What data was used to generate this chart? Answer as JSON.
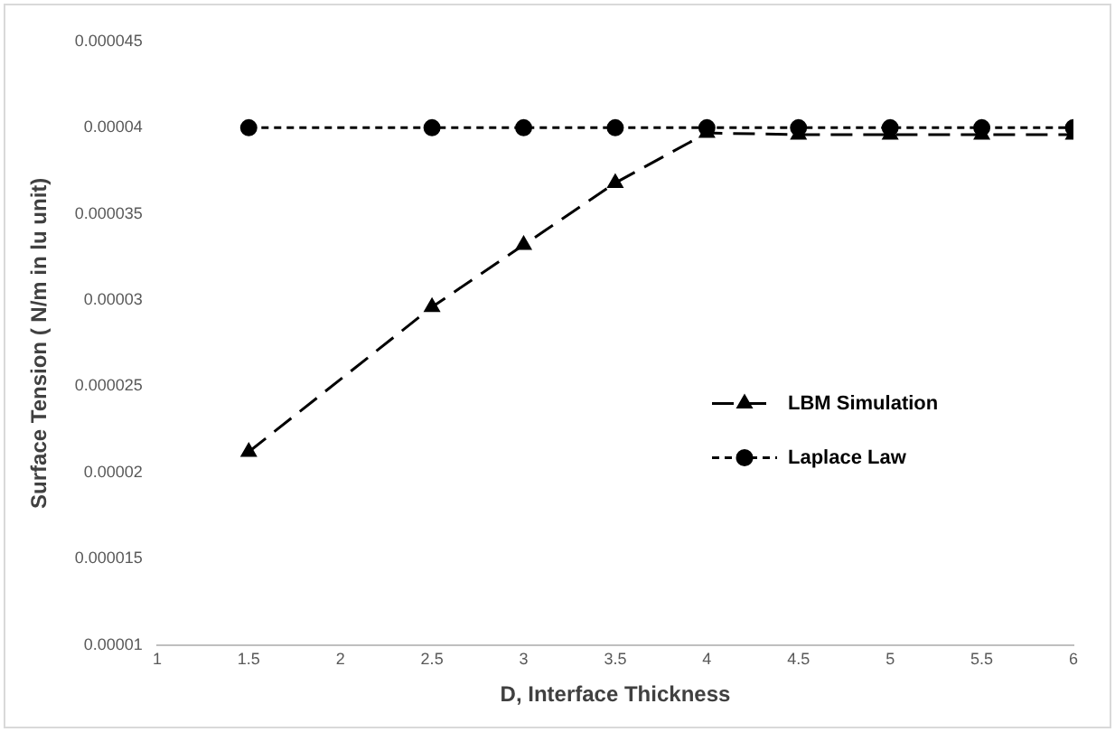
{
  "chart_data": {
    "type": "line",
    "xlabel": "D, Interface Thickness",
    "ylabel": "Surface Tension ( N/m in lu unit)",
    "x": [
      1.5,
      2.5,
      3,
      3.5,
      4,
      4.5,
      5,
      5.5,
      6
    ],
    "series": [
      {
        "name": "LBM Simulation",
        "color": "#000000",
        "marker": "triangle",
        "line_style": "dashed",
        "values": [
          2.12e-05,
          2.96e-05,
          3.32e-05,
          3.68e-05,
          3.97e-05,
          3.96e-05,
          3.96e-05,
          3.96e-05,
          3.96e-05
        ]
      },
      {
        "name": "Laplace Law",
        "color": "#000000",
        "marker": "circle",
        "line_style": "dotted",
        "values": [
          4e-05,
          4e-05,
          4e-05,
          4e-05,
          4e-05,
          4e-05,
          4e-05,
          4e-05,
          4e-05
        ]
      }
    ],
    "xlim": [
      1,
      6
    ],
    "xticks": [
      1,
      1.5,
      2,
      2.5,
      3,
      3.5,
      4,
      4.5,
      5,
      5.5,
      6
    ],
    "ylim": [
      1e-05,
      4.5e-05
    ],
    "yticks": [
      {
        "value": 1e-05,
        "label": "0.00001"
      },
      {
        "value": 1.5e-05,
        "label": "0.000015"
      },
      {
        "value": 2e-05,
        "label": "0.00002"
      },
      {
        "value": 2.5e-05,
        "label": "0.000025"
      },
      {
        "value": 3e-05,
        "label": "0.00003"
      },
      {
        "value": 3.5e-05,
        "label": "0.000035"
      },
      {
        "value": 4e-05,
        "label": "0.00004"
      },
      {
        "value": 4.5e-05,
        "label": "0.000045"
      }
    ],
    "grid": false,
    "legend": "right"
  }
}
